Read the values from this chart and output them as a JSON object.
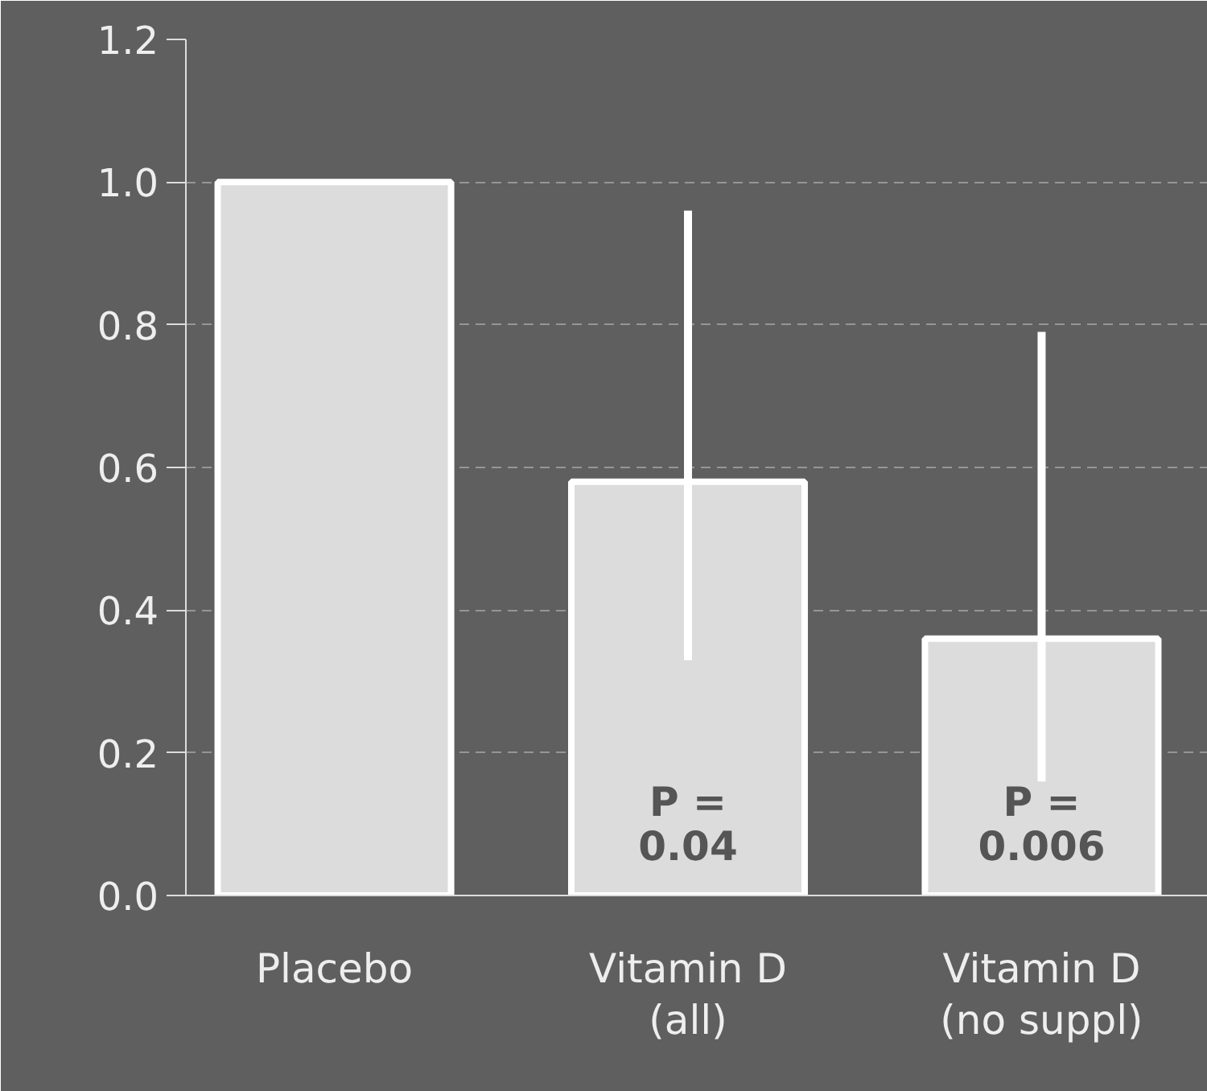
{
  "chart_data": {
    "type": "bar",
    "categories": [
      "Placebo",
      "Vitamin D\n(all)",
      "Vitamin D\n(no suppl)"
    ],
    "values": [
      1.0,
      0.58,
      0.36
    ],
    "errors": [
      null,
      [
        0.33,
        0.96
      ],
      [
        0.16,
        0.79
      ]
    ],
    "color": "#dcdcdc",
    "ylim": [
      0,
      1.2
    ],
    "yticks": [
      {
        "value": 0,
        "label": "0.0"
      },
      0.2,
      0.4,
      0.6,
      0.8,
      {
        "value": 1,
        "label": "1.0"
      },
      1.2
    ],
    "grid": "y",
    "annotations": [
      "P =\n0.04",
      "P =\n0.006"
    ]
  }
}
